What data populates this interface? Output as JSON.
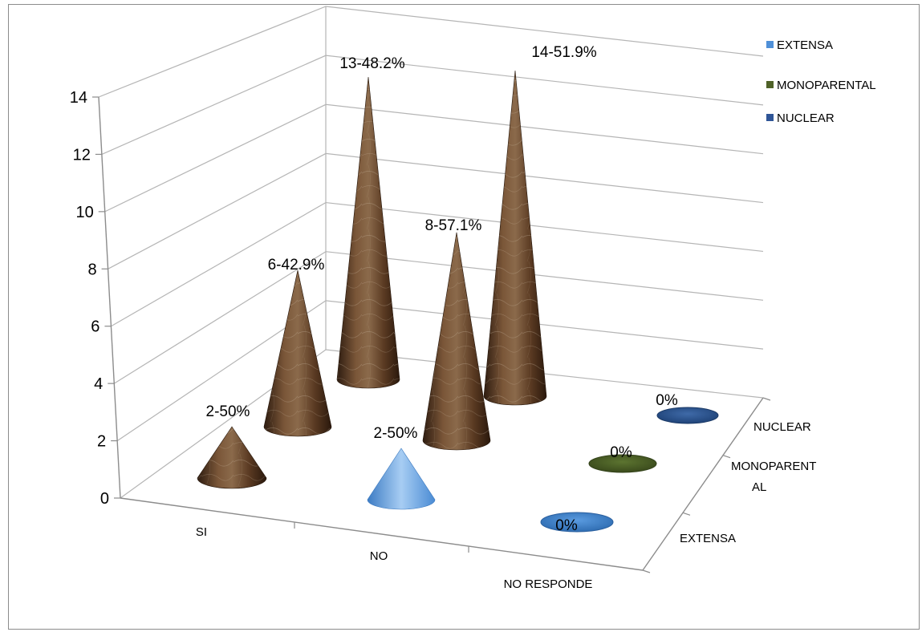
{
  "chart_data": {
    "type": "bar",
    "shape": "3d-cone",
    "categories": [
      "SI",
      "NO",
      "NO RESPONDE"
    ],
    "depth_categories": [
      "NUCLEAR",
      "MONOPARENTAL",
      "EXTENSA"
    ],
    "depth_tick_labels": [
      "NUCLEAR",
      "MONOPARENT",
      "AL",
      "EXTENSA"
    ],
    "series": [
      {
        "name": "EXTENSA",
        "color": "#4f90d8",
        "values": [
          2,
          2,
          0
        ],
        "labels": [
          "2-50%",
          "2-50%",
          "0%"
        ]
      },
      {
        "name": "MONOPARENTAL",
        "color": "#4f6228",
        "values": [
          6,
          8,
          0
        ],
        "labels": [
          "6-42.9%",
          "8-57.1%",
          "0%"
        ]
      },
      {
        "name": "NUCLEAR",
        "color": "#2f5597",
        "values": [
          13,
          14,
          0
        ],
        "labels": [
          "13-48.2%",
          "14-51.9%",
          "0%"
        ]
      }
    ],
    "ylim": [
      0,
      14
    ],
    "yticks": [
      0,
      2,
      4,
      6,
      8,
      10,
      12,
      14
    ],
    "grid": true,
    "legend_position": "top-right"
  }
}
